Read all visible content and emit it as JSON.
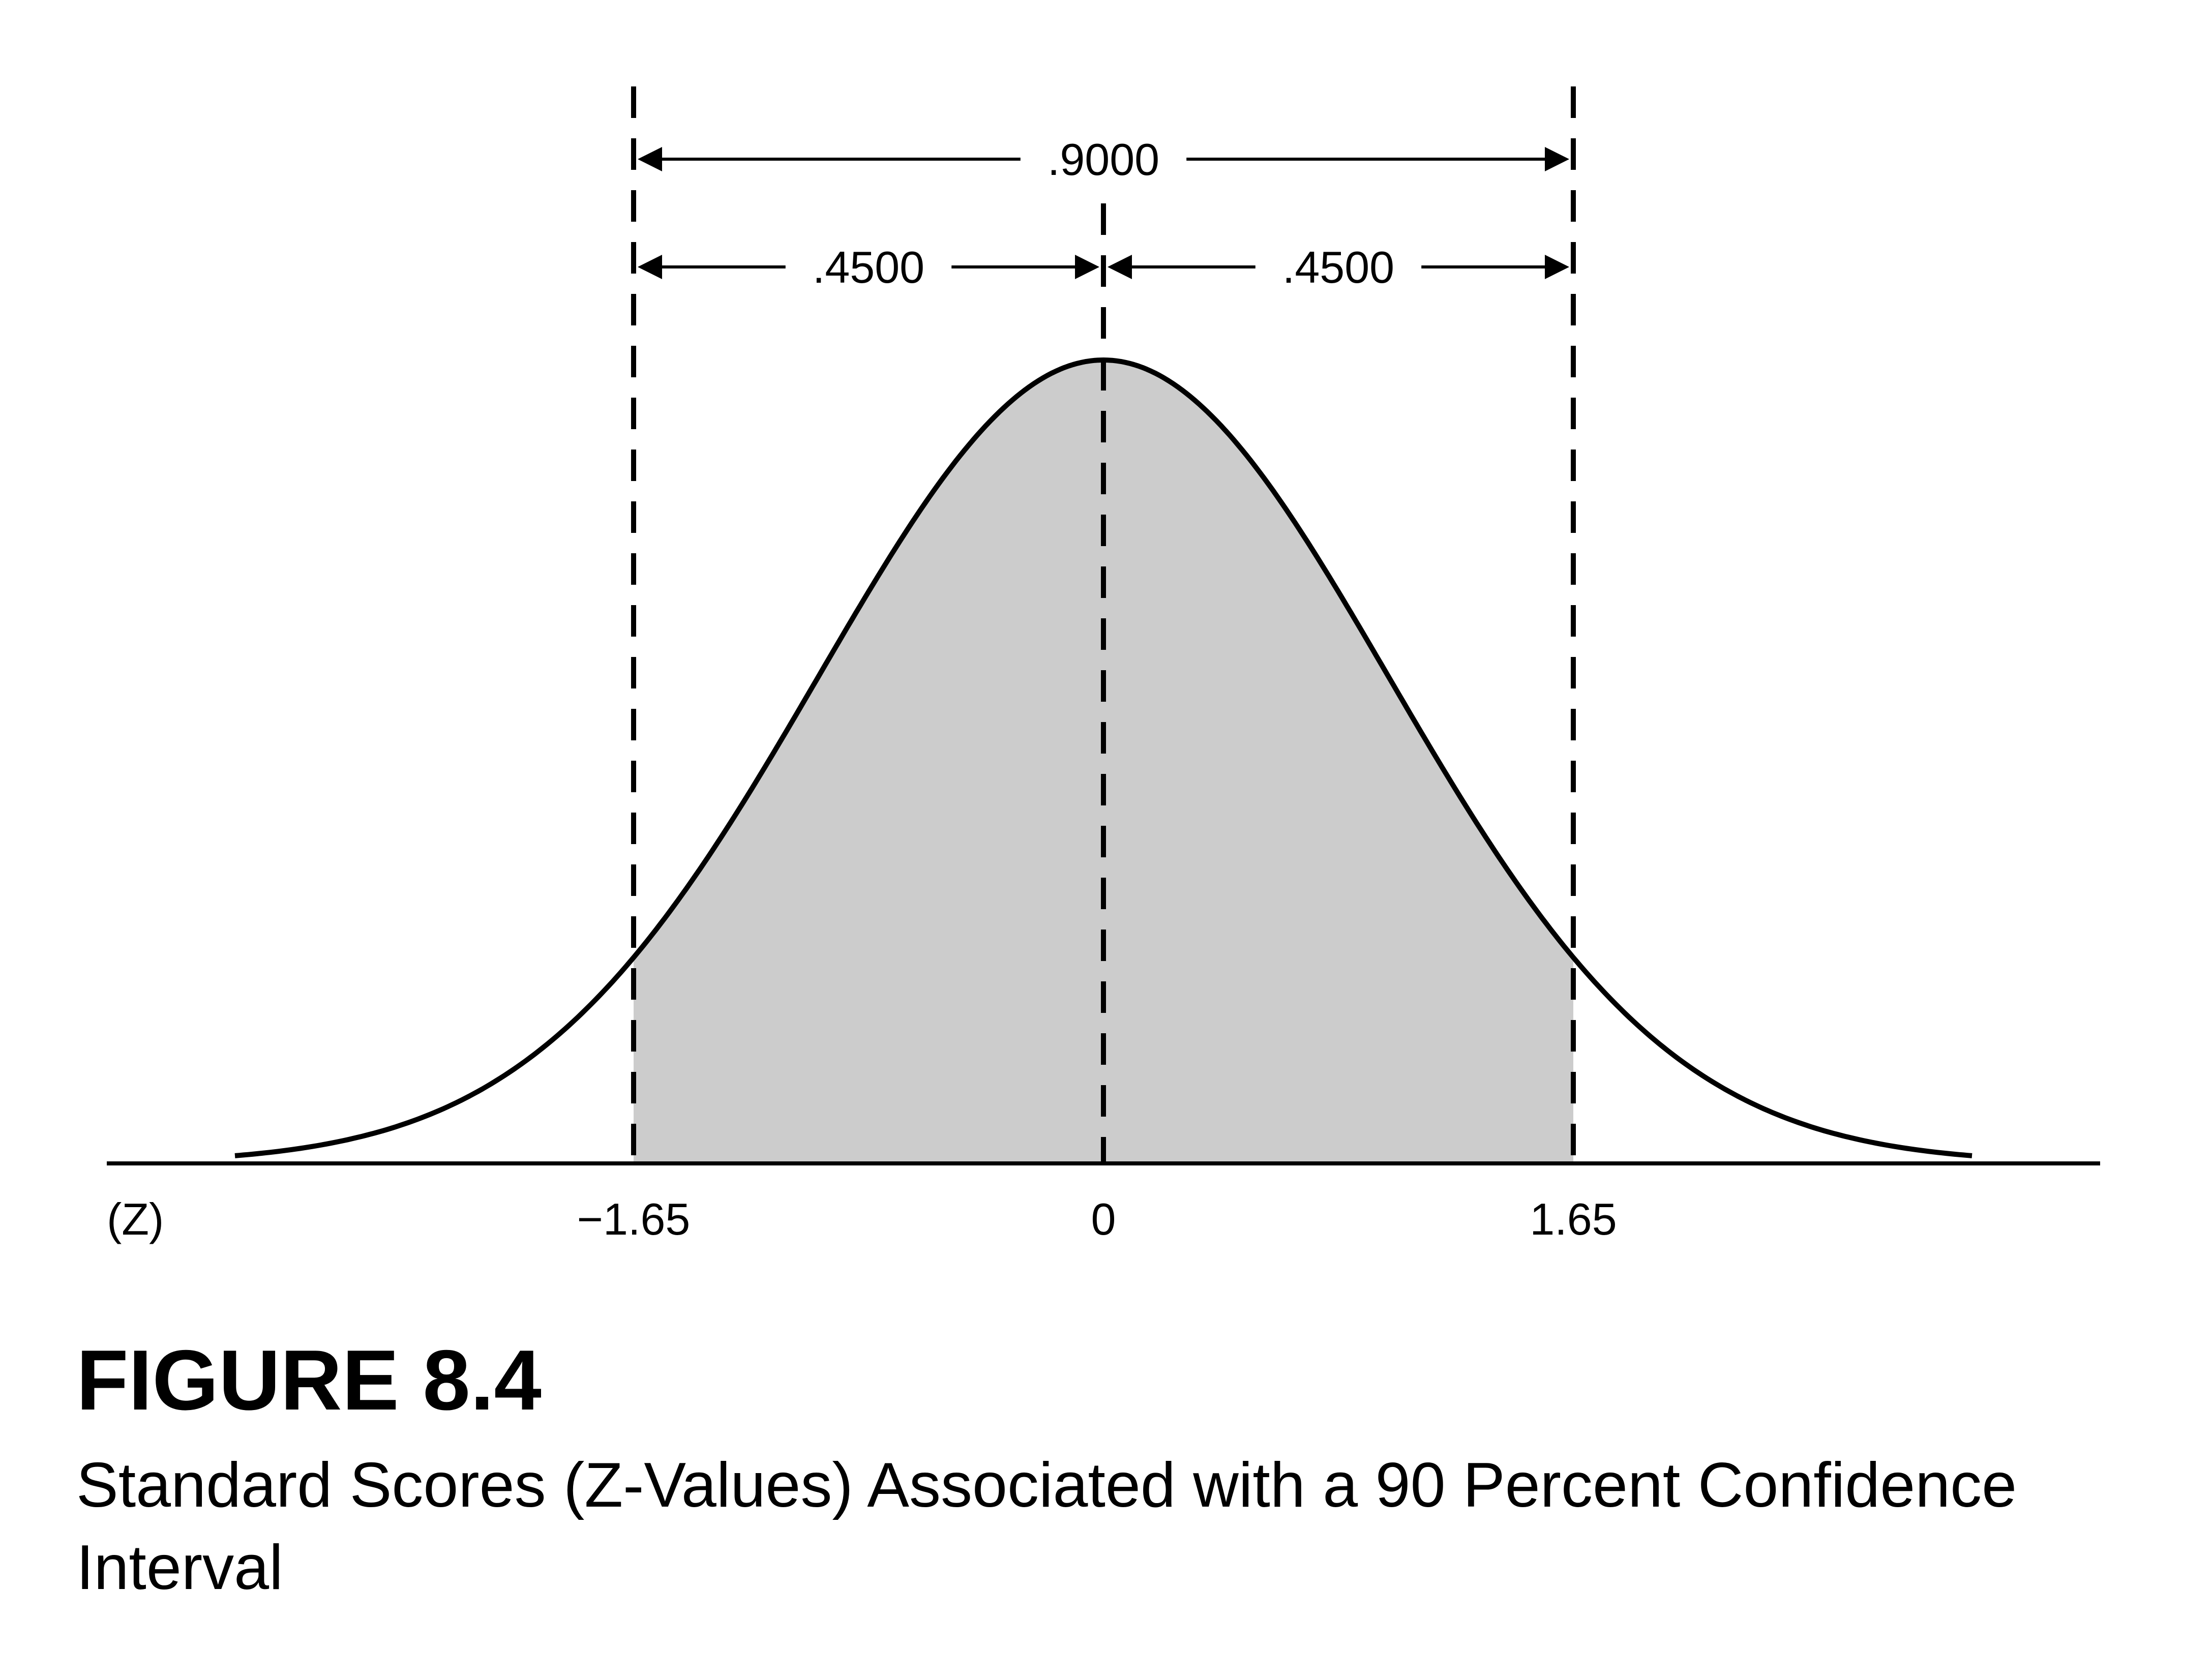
{
  "figure": {
    "title": "FIGURE 8.4",
    "caption": "Standard Scores (Z-Values) Associated with a 90 Percent Confidence Interval"
  },
  "chart_data": {
    "type": "area",
    "distribution": "standard normal",
    "axis_label": "(Z)",
    "xlim": [
      -3.05,
      3.05
    ],
    "x_ticks": [
      {
        "value": -1.65,
        "label": "−1.65"
      },
      {
        "value": 0,
        "label": "0"
      },
      {
        "value": 1.65,
        "label": "1.65"
      }
    ],
    "shaded_region": {
      "from": -1.65,
      "to": 1.65
    },
    "brackets": [
      {
        "from": -1.65,
        "to": 1.65,
        "label": ".9000",
        "row": "upper"
      },
      {
        "from": -1.65,
        "to": 0,
        "label": ".4500",
        "row": "lower"
      },
      {
        "from": 0,
        "to": 1.65,
        "label": ".4500",
        "row": "lower"
      }
    ],
    "colors": {
      "shade": "#cccccc",
      "line": "#000000"
    }
  }
}
